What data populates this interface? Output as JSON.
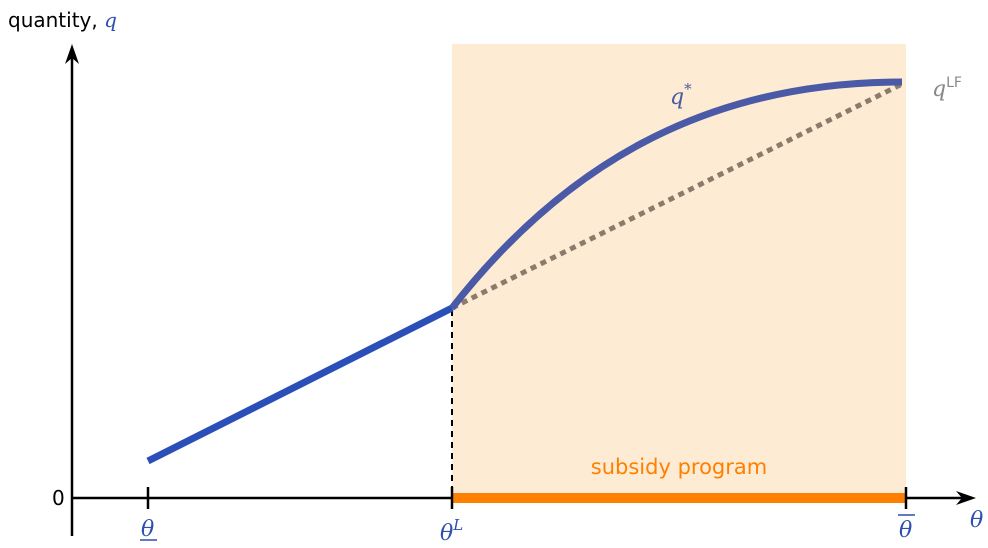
{
  "y_axis": {
    "label_prefix": "quantity, ",
    "label_symbol": "q"
  },
  "x_axis": {
    "symbol": "θ",
    "zero_label": "0"
  },
  "ticks": {
    "theta_low": "θ",
    "theta_L_base": "θ",
    "theta_L_sup": "L",
    "theta_high": "θ"
  },
  "curves": {
    "q_star_base": "q",
    "q_star_sup": "*",
    "q_lf_base": "q",
    "q_lf_sup": "LF"
  },
  "region": {
    "label": "subsidy program"
  },
  "colors": {
    "blue_line": "#2b4fb8",
    "blue_curve": "#4a5aa6",
    "dotted_line": "#8c7b6b",
    "shaded_region": "#fdebd3",
    "subsidy_orange": "#ff8000",
    "label_blue": "#2d4fb0",
    "label_gray": "#888888"
  }
}
